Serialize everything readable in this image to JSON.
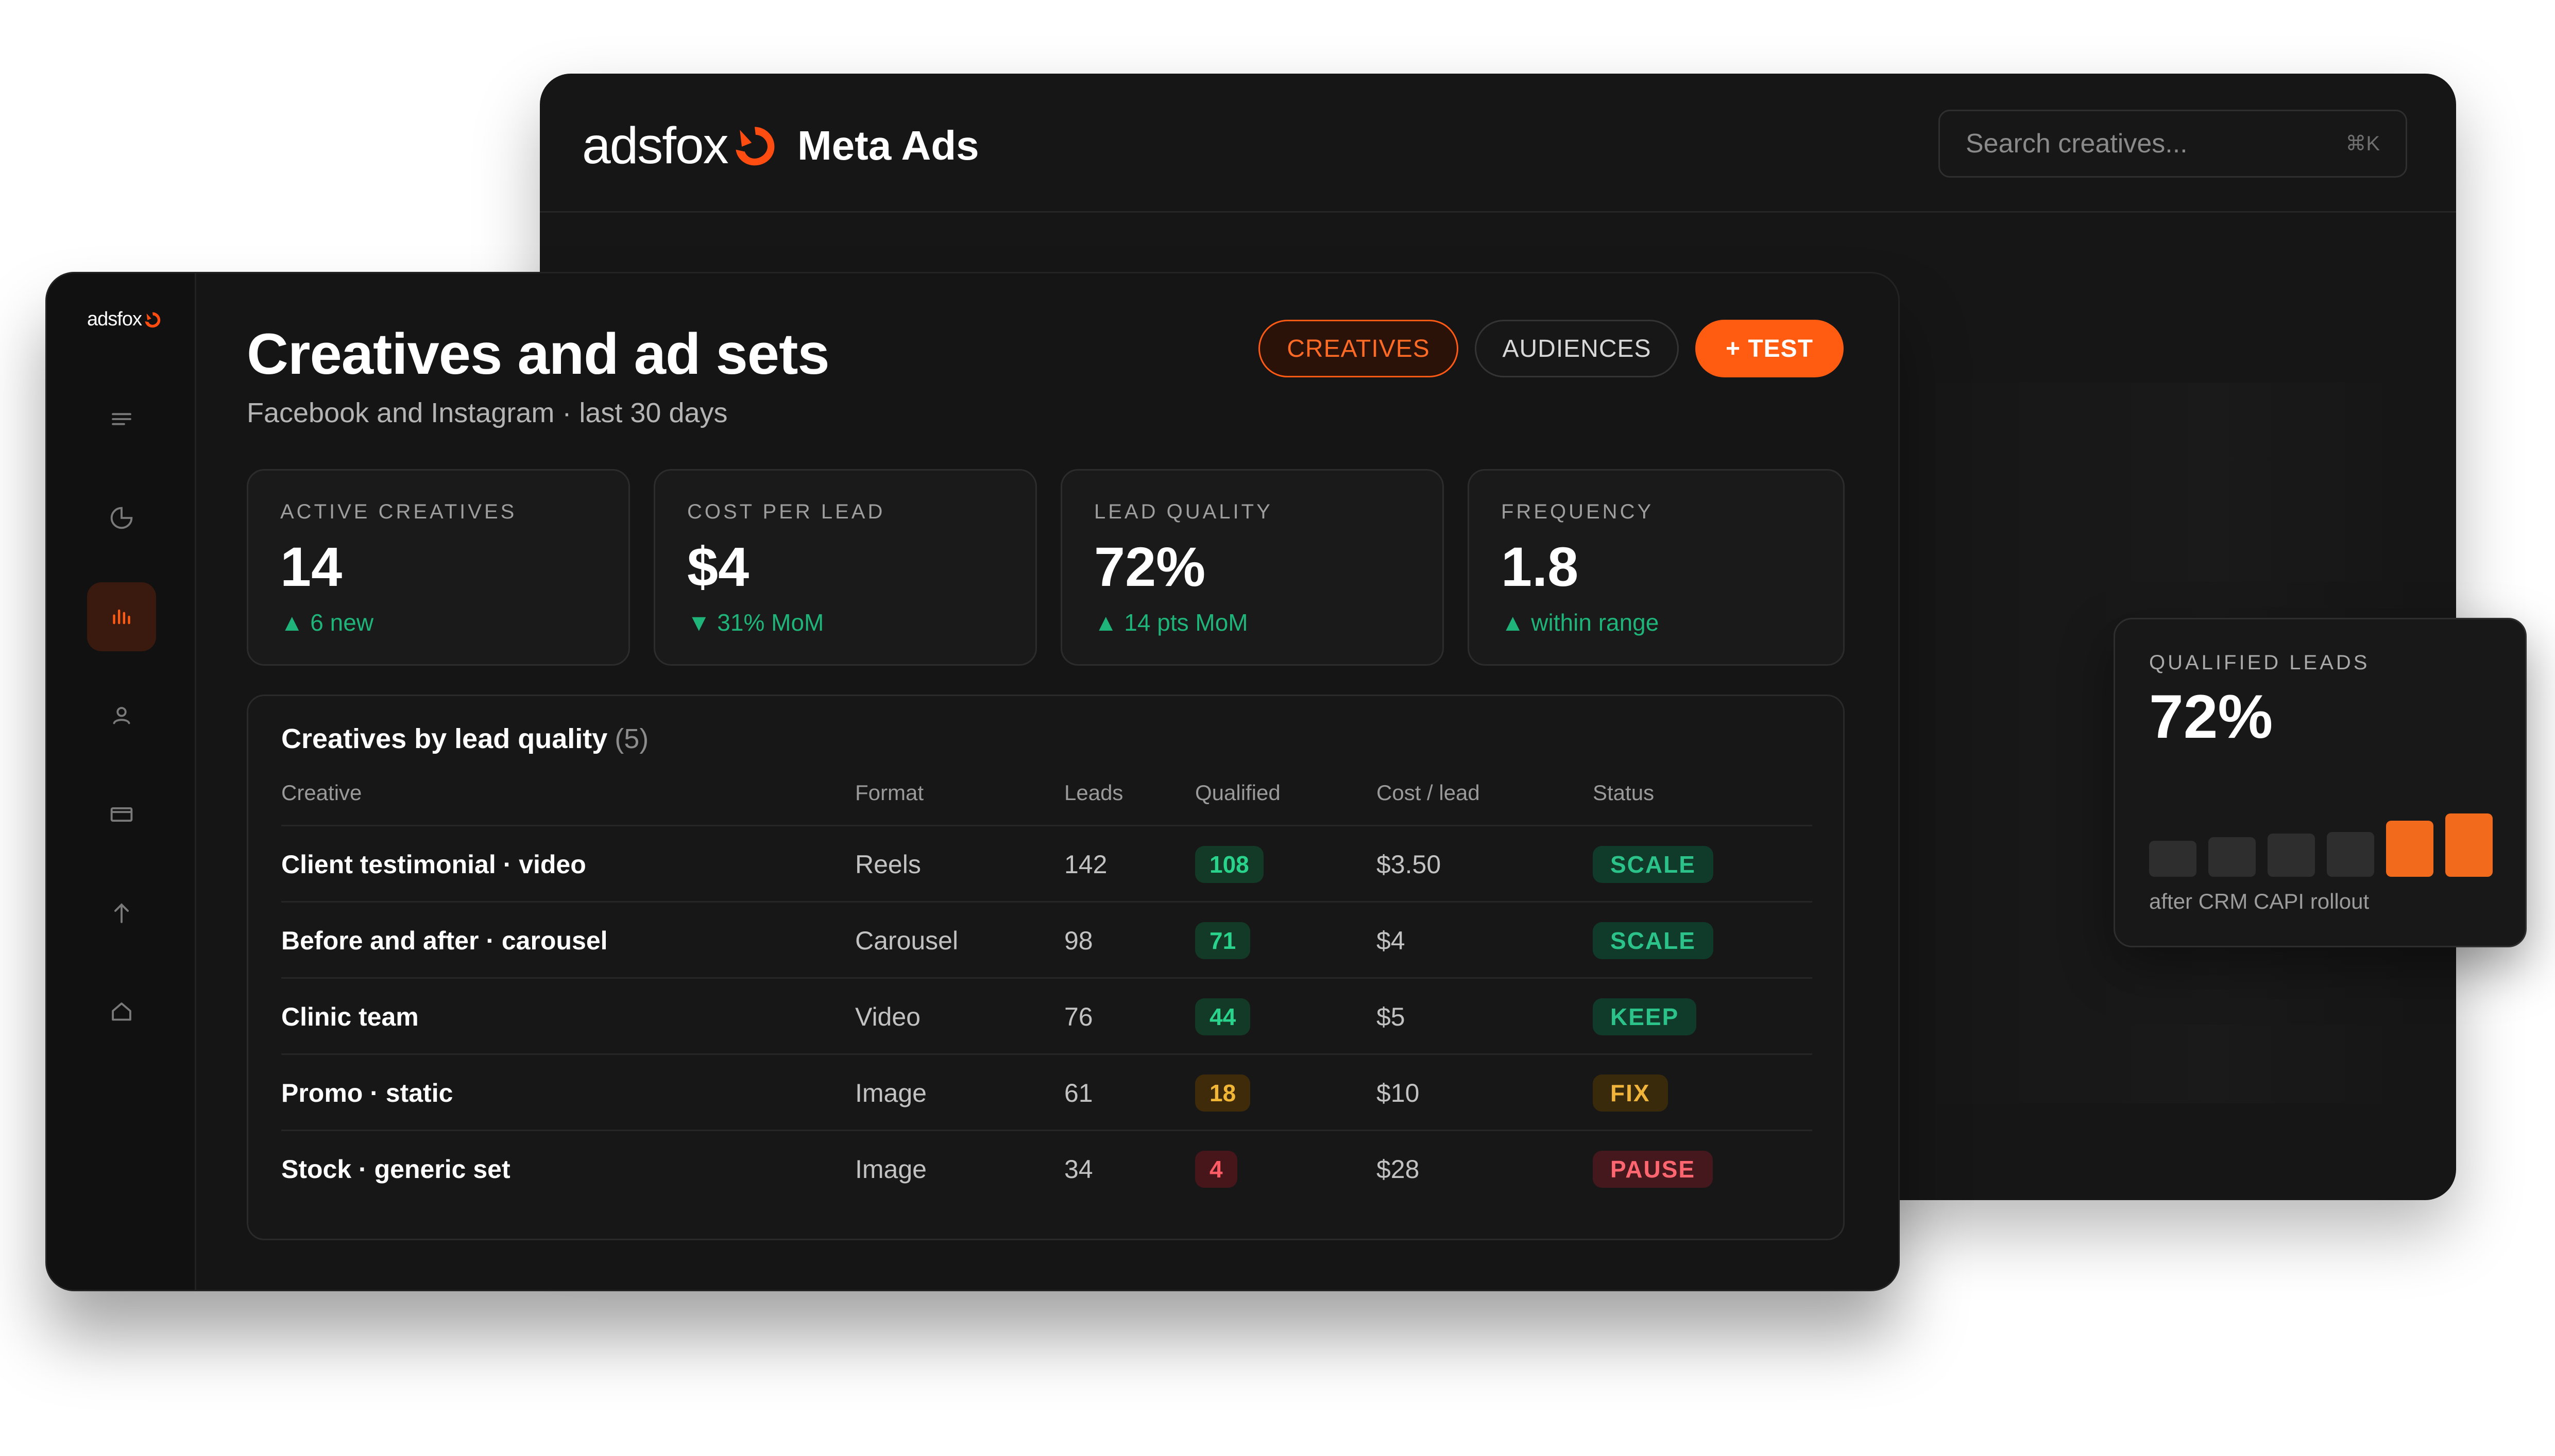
{
  "brand": {
    "name": "adsfox",
    "accent": "#ff5c12"
  },
  "header": {
    "app_title": "Meta Ads",
    "search_placeholder": "Search creatives...",
    "search_shortcut": "⌘K"
  },
  "sidebar": {
    "items": [
      {
        "icon": "menu-icon",
        "active": false
      },
      {
        "icon": "pie-chart-icon",
        "active": false
      },
      {
        "icon": "bar-chart-icon",
        "active": true
      },
      {
        "icon": "user-icon",
        "active": false
      },
      {
        "icon": "card-icon",
        "active": false
      },
      {
        "icon": "arrow-up-icon",
        "active": false
      },
      {
        "icon": "home-icon",
        "active": false
      }
    ]
  },
  "page": {
    "title": "Creatives and ad sets",
    "subtitle": "Facebook and Instagram · last 30 days",
    "tabs": [
      {
        "label": "CREATIVES",
        "active": true
      },
      {
        "label": "AUDIENCES",
        "active": false
      }
    ],
    "primary_action": "+ TEST"
  },
  "kpis": [
    {
      "label": "ACTIVE CREATIVES",
      "value": "14",
      "delta": "▲ 6 new"
    },
    {
      "label": "COST PER LEAD",
      "value": "$4",
      "delta": "▼ 31% MoM"
    },
    {
      "label": "LEAD QUALITY",
      "value": "72%",
      "delta": "▲ 14 pts MoM"
    },
    {
      "label": "FREQUENCY",
      "value": "1.8",
      "delta": "▲ within range"
    }
  ],
  "table": {
    "title": "Creatives by lead quality",
    "count": "(5)",
    "columns": [
      "Creative",
      "Format",
      "Leads",
      "Qualified",
      "Cost / lead",
      "Status"
    ],
    "rows": [
      {
        "creative": "Client testimonial · video",
        "format": "Reels",
        "leads": "142",
        "qualified": "108",
        "qualified_tone": "green",
        "cost": "$3.50",
        "status": "SCALE",
        "status_tone": "green"
      },
      {
        "creative": "Before and after · carousel",
        "format": "Carousel",
        "leads": "98",
        "qualified": "71",
        "qualified_tone": "green",
        "cost": "$4",
        "status": "SCALE",
        "status_tone": "green"
      },
      {
        "creative": "Clinic team",
        "format": "Video",
        "leads": "76",
        "qualified": "44",
        "qualified_tone": "green",
        "cost": "$5",
        "status": "KEEP",
        "status_tone": "green"
      },
      {
        "creative": "Promo · static",
        "format": "Image",
        "leads": "61",
        "qualified": "18",
        "qualified_tone": "amber",
        "cost": "$10",
        "status": "FIX",
        "status_tone": "amber"
      },
      {
        "creative": "Stock · generic set",
        "format": "Image",
        "leads": "34",
        "qualified": "4",
        "qualified_tone": "red",
        "cost": "$28",
        "status": "PAUSE",
        "status_tone": "red"
      }
    ]
  },
  "qualified_card": {
    "label": "QUALIFIED LEADS",
    "value": "72%",
    "caption": "after CRM CAPI rollout",
    "bars": [
      {
        "level": 0.5,
        "color": "#2e2e2e"
      },
      {
        "level": 0.55,
        "color": "#2e2e2e"
      },
      {
        "level": 0.6,
        "color": "#2e2e2e"
      },
      {
        "level": 0.62,
        "color": "#2e2e2e"
      },
      {
        "level": 0.78,
        "color": "#f26a1b"
      },
      {
        "level": 0.88,
        "color": "#f26a1b"
      }
    ]
  }
}
